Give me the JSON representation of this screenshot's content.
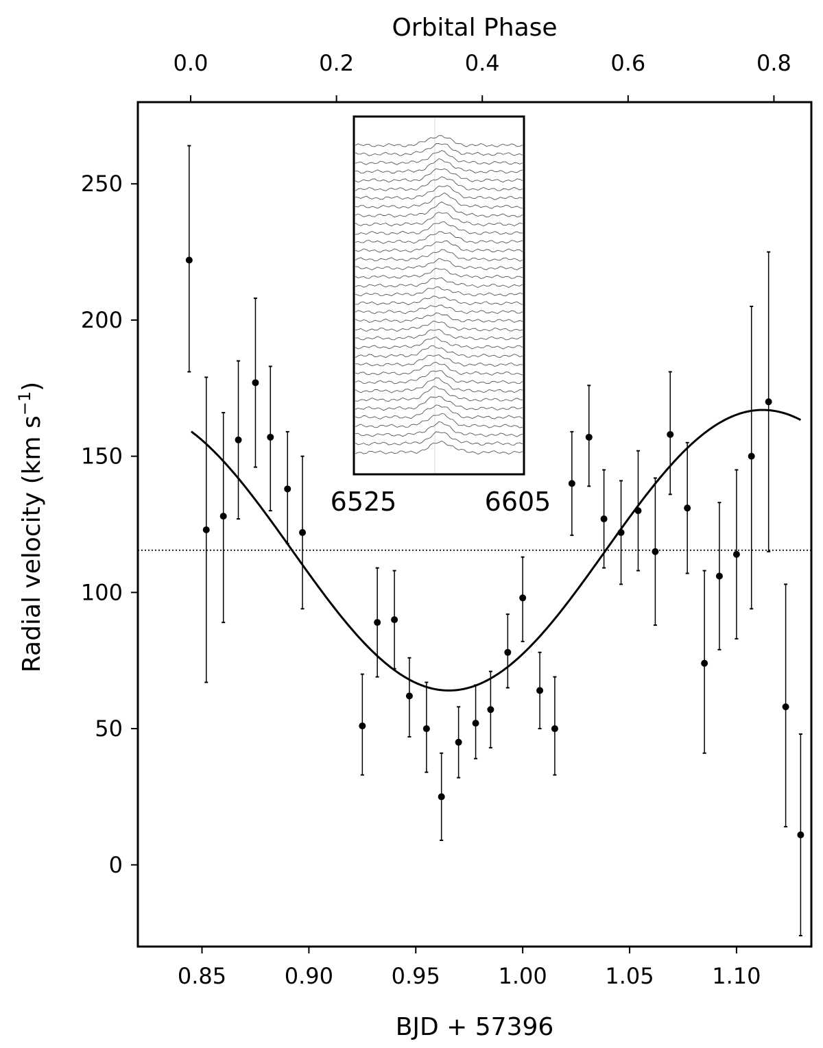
{
  "chart_data": {
    "type": "scatter",
    "xlabel": "BJD + 57396",
    "ylabel": "Radial velocity (km s",
    "ylabel_sup": "−1",
    "ylabel_close": ")",
    "top_xlabel": "Orbital Phase",
    "xlim": [
      0.82,
      1.135
    ],
    "ylim": [
      -30,
      280
    ],
    "x_ticks": [
      0.85,
      0.9,
      0.95,
      1.0,
      1.05,
      1.1
    ],
    "x_tick_labels": [
      "0.85",
      "0.90",
      "0.95",
      "1.00",
      "1.05",
      "1.10"
    ],
    "y_ticks": [
      0,
      50,
      100,
      150,
      200,
      250
    ],
    "y_tick_labels": [
      "0",
      "50",
      "100",
      "150",
      "200",
      "250"
    ],
    "phase_ticks": [
      {
        "phase": 0.0,
        "bjd": 0.8447,
        "label": "0.0"
      },
      {
        "phase": 0.2,
        "bjd": 0.9129,
        "label": "0.2"
      },
      {
        "phase": 0.4,
        "bjd": 0.9811,
        "label": "0.4"
      },
      {
        "phase": 0.6,
        "bjd": 1.0493,
        "label": "0.6"
      },
      {
        "phase": 0.8,
        "bjd": 1.1175,
        "label": "0.8"
      }
    ],
    "series": [
      {
        "kind": "points-with-errorbars",
        "points": [
          {
            "x": 0.844,
            "y": 222,
            "yerr_lo": 181,
            "yerr_hi": 264
          },
          {
            "x": 0.852,
            "y": 123,
            "yerr_lo": 67,
            "yerr_hi": 179
          },
          {
            "x": 0.86,
            "y": 128,
            "yerr_lo": 89,
            "yerr_hi": 166
          },
          {
            "x": 0.867,
            "y": 156,
            "yerr_lo": 127,
            "yerr_hi": 185
          },
          {
            "x": 0.875,
            "y": 177,
            "yerr_lo": 146,
            "yerr_hi": 208
          },
          {
            "x": 0.882,
            "y": 157,
            "yerr_lo": 130,
            "yerr_hi": 183
          },
          {
            "x": 0.89,
            "y": 138,
            "yerr_lo": 118,
            "yerr_hi": 159
          },
          {
            "x": 0.897,
            "y": 122,
            "yerr_lo": 94,
            "yerr_hi": 150
          },
          {
            "x": 0.925,
            "y": 51,
            "yerr_lo": 33,
            "yerr_hi": 70
          },
          {
            "x": 0.932,
            "y": 89,
            "yerr_lo": 69,
            "yerr_hi": 109
          },
          {
            "x": 0.94,
            "y": 90,
            "yerr_lo": 72,
            "yerr_hi": 108
          },
          {
            "x": 0.947,
            "y": 62,
            "yerr_lo": 47,
            "yerr_hi": 76
          },
          {
            "x": 0.955,
            "y": 50,
            "yerr_lo": 34,
            "yerr_hi": 67
          },
          {
            "x": 0.962,
            "y": 25,
            "yerr_lo": 9,
            "yerr_hi": 41
          },
          {
            "x": 0.97,
            "y": 45,
            "yerr_lo": 32,
            "yerr_hi": 58
          },
          {
            "x": 0.978,
            "y": 52,
            "yerr_lo": 39,
            "yerr_hi": 66
          },
          {
            "x": 0.985,
            "y": 57,
            "yerr_lo": 43,
            "yerr_hi": 71
          },
          {
            "x": 0.993,
            "y": 78,
            "yerr_lo": 65,
            "yerr_hi": 92
          },
          {
            "x": 1.0,
            "y": 98,
            "yerr_lo": 82,
            "yerr_hi": 113
          },
          {
            "x": 1.008,
            "y": 64,
            "yerr_lo": 50,
            "yerr_hi": 78
          },
          {
            "x": 1.015,
            "y": 50,
            "yerr_lo": 33,
            "yerr_hi": 69
          },
          {
            "x": 1.023,
            "y": 140,
            "yerr_lo": 121,
            "yerr_hi": 159
          },
          {
            "x": 1.031,
            "y": 157,
            "yerr_lo": 139,
            "yerr_hi": 176
          },
          {
            "x": 1.038,
            "y": 127,
            "yerr_lo": 109,
            "yerr_hi": 145
          },
          {
            "x": 1.046,
            "y": 122,
            "yerr_lo": 103,
            "yerr_hi": 141
          },
          {
            "x": 1.054,
            "y": 130,
            "yerr_lo": 108,
            "yerr_hi": 152
          },
          {
            "x": 1.062,
            "y": 115,
            "yerr_lo": 88,
            "yerr_hi": 142
          },
          {
            "x": 1.069,
            "y": 158,
            "yerr_lo": 136,
            "yerr_hi": 181
          },
          {
            "x": 1.077,
            "y": 131,
            "yerr_lo": 107,
            "yerr_hi": 155
          },
          {
            "x": 1.085,
            "y": 74,
            "yerr_lo": 41,
            "yerr_hi": 108
          },
          {
            "x": 1.092,
            "y": 106,
            "yerr_lo": 79,
            "yerr_hi": 133
          },
          {
            "x": 1.1,
            "y": 114,
            "yerr_lo": 83,
            "yerr_hi": 145
          },
          {
            "x": 1.107,
            "y": 150,
            "yerr_lo": 94,
            "yerr_hi": 205
          },
          {
            "x": 1.115,
            "y": 170,
            "yerr_lo": 115,
            "yerr_hi": 225
          },
          {
            "x": 1.123,
            "y": 58,
            "yerr_lo": 14,
            "yerr_hi": 103
          },
          {
            "x": 1.13,
            "y": 11,
            "yerr_lo": -26,
            "yerr_hi": 48
          }
        ]
      },
      {
        "kind": "sinusoid-fit",
        "gamma": 115.5,
        "semi_amplitude": 51.5,
        "t_min": 0.9655,
        "period": 0.2935,
        "x_range": [
          0.845,
          1.13
        ]
      },
      {
        "kind": "systemic-velocity-dotted",
        "y": 115.5
      }
    ],
    "inset": {
      "type": "stacked-spectra",
      "x_tick_labels": [
        "6525",
        "6605"
      ],
      "n_spectra": 36
    },
    "grid": false,
    "legend": "none"
  }
}
